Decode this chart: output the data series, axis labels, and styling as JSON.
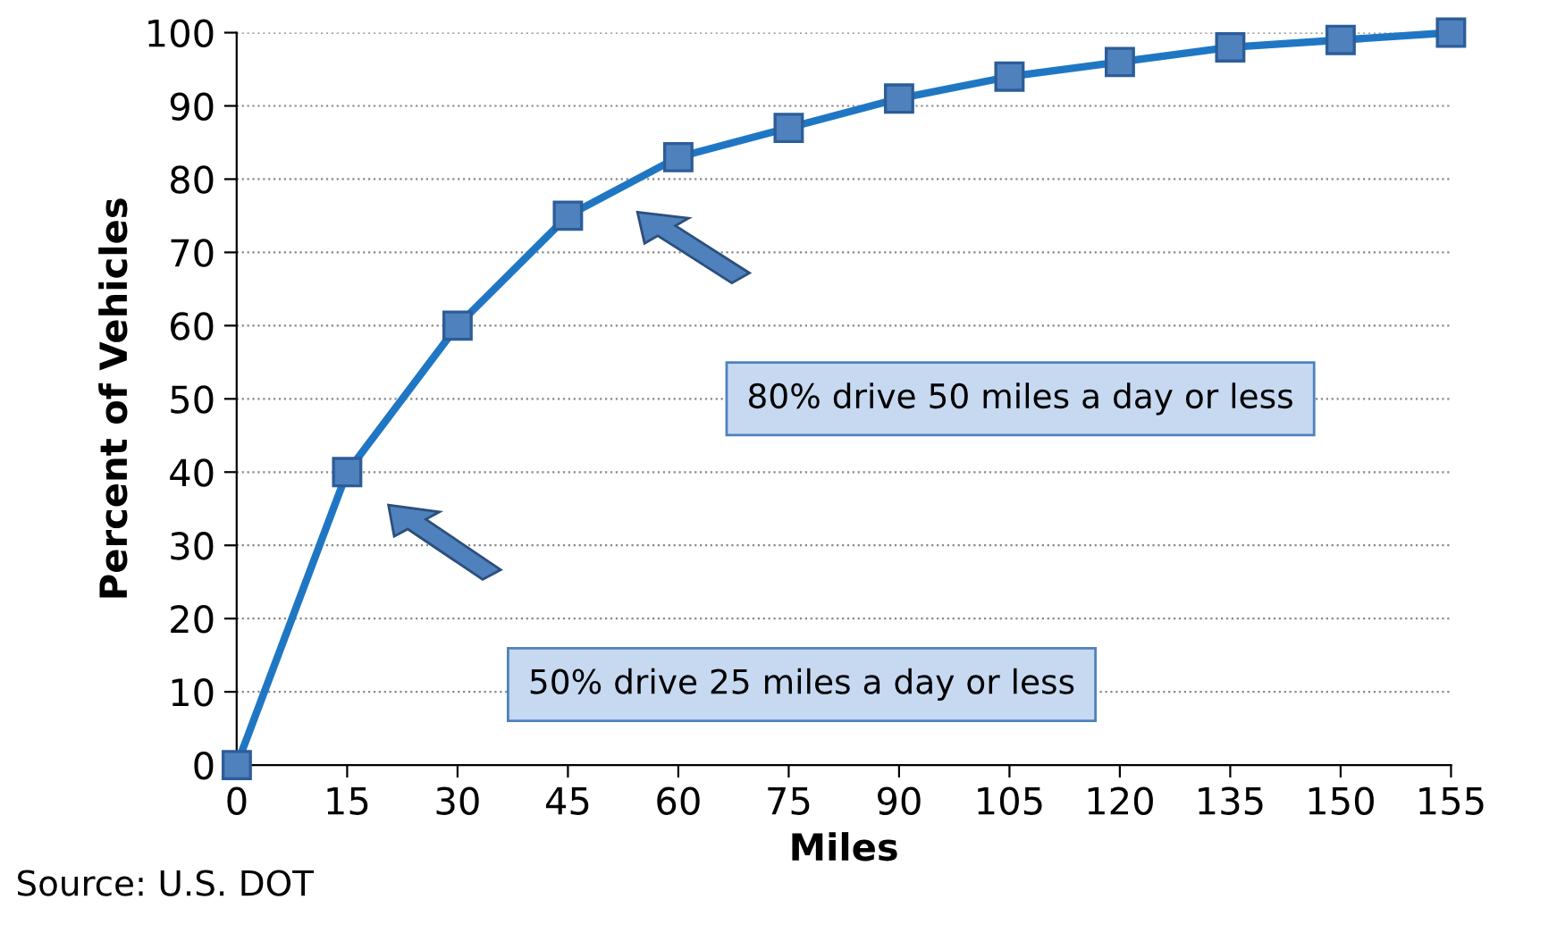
{
  "chart_data": {
    "type": "line",
    "xlabel": "Miles",
    "ylabel": "Percent of Vehicles",
    "categories": [
      "0",
      "15",
      "30",
      "45",
      "60",
      "75",
      "90",
      "105",
      "120",
      "135",
      "150",
      "155"
    ],
    "series": [
      {
        "color": "#1f77c4",
        "values": [
          0,
          40,
          60,
          75,
          83,
          87,
          91,
          94,
          96,
          98,
          99,
          100
        ]
      }
    ],
    "ylim": [
      0,
      100
    ],
    "yticks": [
      0,
      10,
      20,
      30,
      40,
      50,
      60,
      70,
      80,
      90,
      100
    ],
    "grid": "y",
    "marker": "square",
    "line_style": "solid",
    "legend": false,
    "annotations": [
      "50% drive 25 miles a day or less",
      "80% drive 50 miles a day or less",
      "Source: U.S. DOT"
    ]
  }
}
